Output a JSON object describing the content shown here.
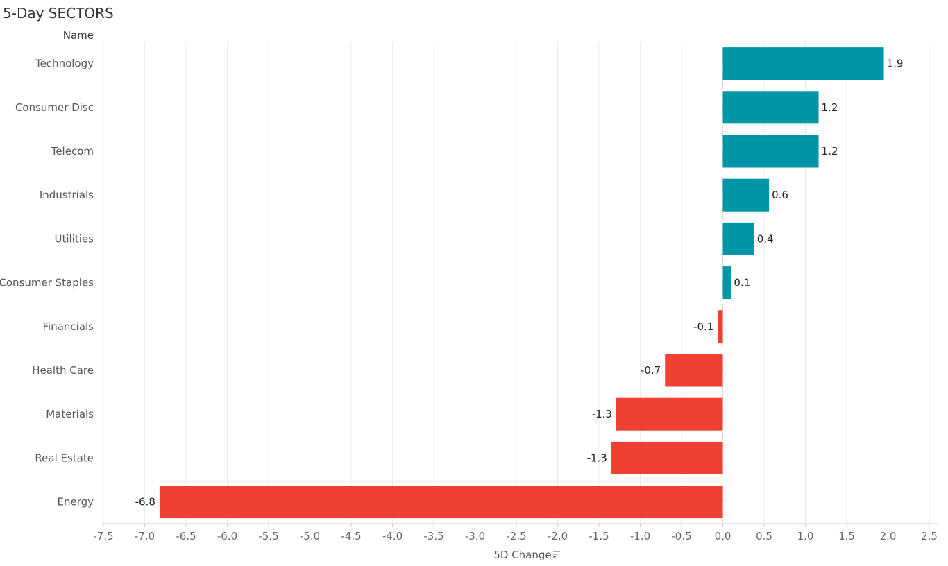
{
  "chart_data": {
    "type": "bar",
    "orientation": "horizontal",
    "title": "5-Day SECTORS",
    "row_header": "Name",
    "xlabel": "5D Change",
    "categories": [
      "Technology",
      "Consumer Disc",
      "Telecom",
      "Industrials",
      "Utilities",
      "Consumer Staples",
      "Financials",
      "Health Care",
      "Materials",
      "Real Estate",
      "Energy"
    ],
    "values": [
      1.95,
      1.16,
      1.16,
      0.56,
      0.38,
      0.1,
      -0.06,
      -0.7,
      -1.29,
      -1.35,
      -6.82
    ],
    "value_labels": [
      "1.9",
      "1.2",
      "1.2",
      "0.6",
      "0.4",
      "0.1",
      "-0.1",
      "-0.7",
      "-1.3",
      "-1.3",
      "-6.8"
    ],
    "xlim": [
      -7.5,
      2.5
    ],
    "xticks": [
      "-7.5",
      "-7.0",
      "-6.5",
      "-6.0",
      "-5.5",
      "-5.0",
      "-4.5",
      "-4.0",
      "-3.5",
      "-3.0",
      "-2.5",
      "-2.0",
      "-1.5",
      "-1.0",
      "-0.5",
      "0.0",
      "0.5",
      "1.0",
      "1.5",
      "2.0",
      "2.5"
    ],
    "grid": true,
    "legend": "none",
    "colors": {
      "positive": "#0096a8",
      "negative": "#ef4031"
    }
  }
}
